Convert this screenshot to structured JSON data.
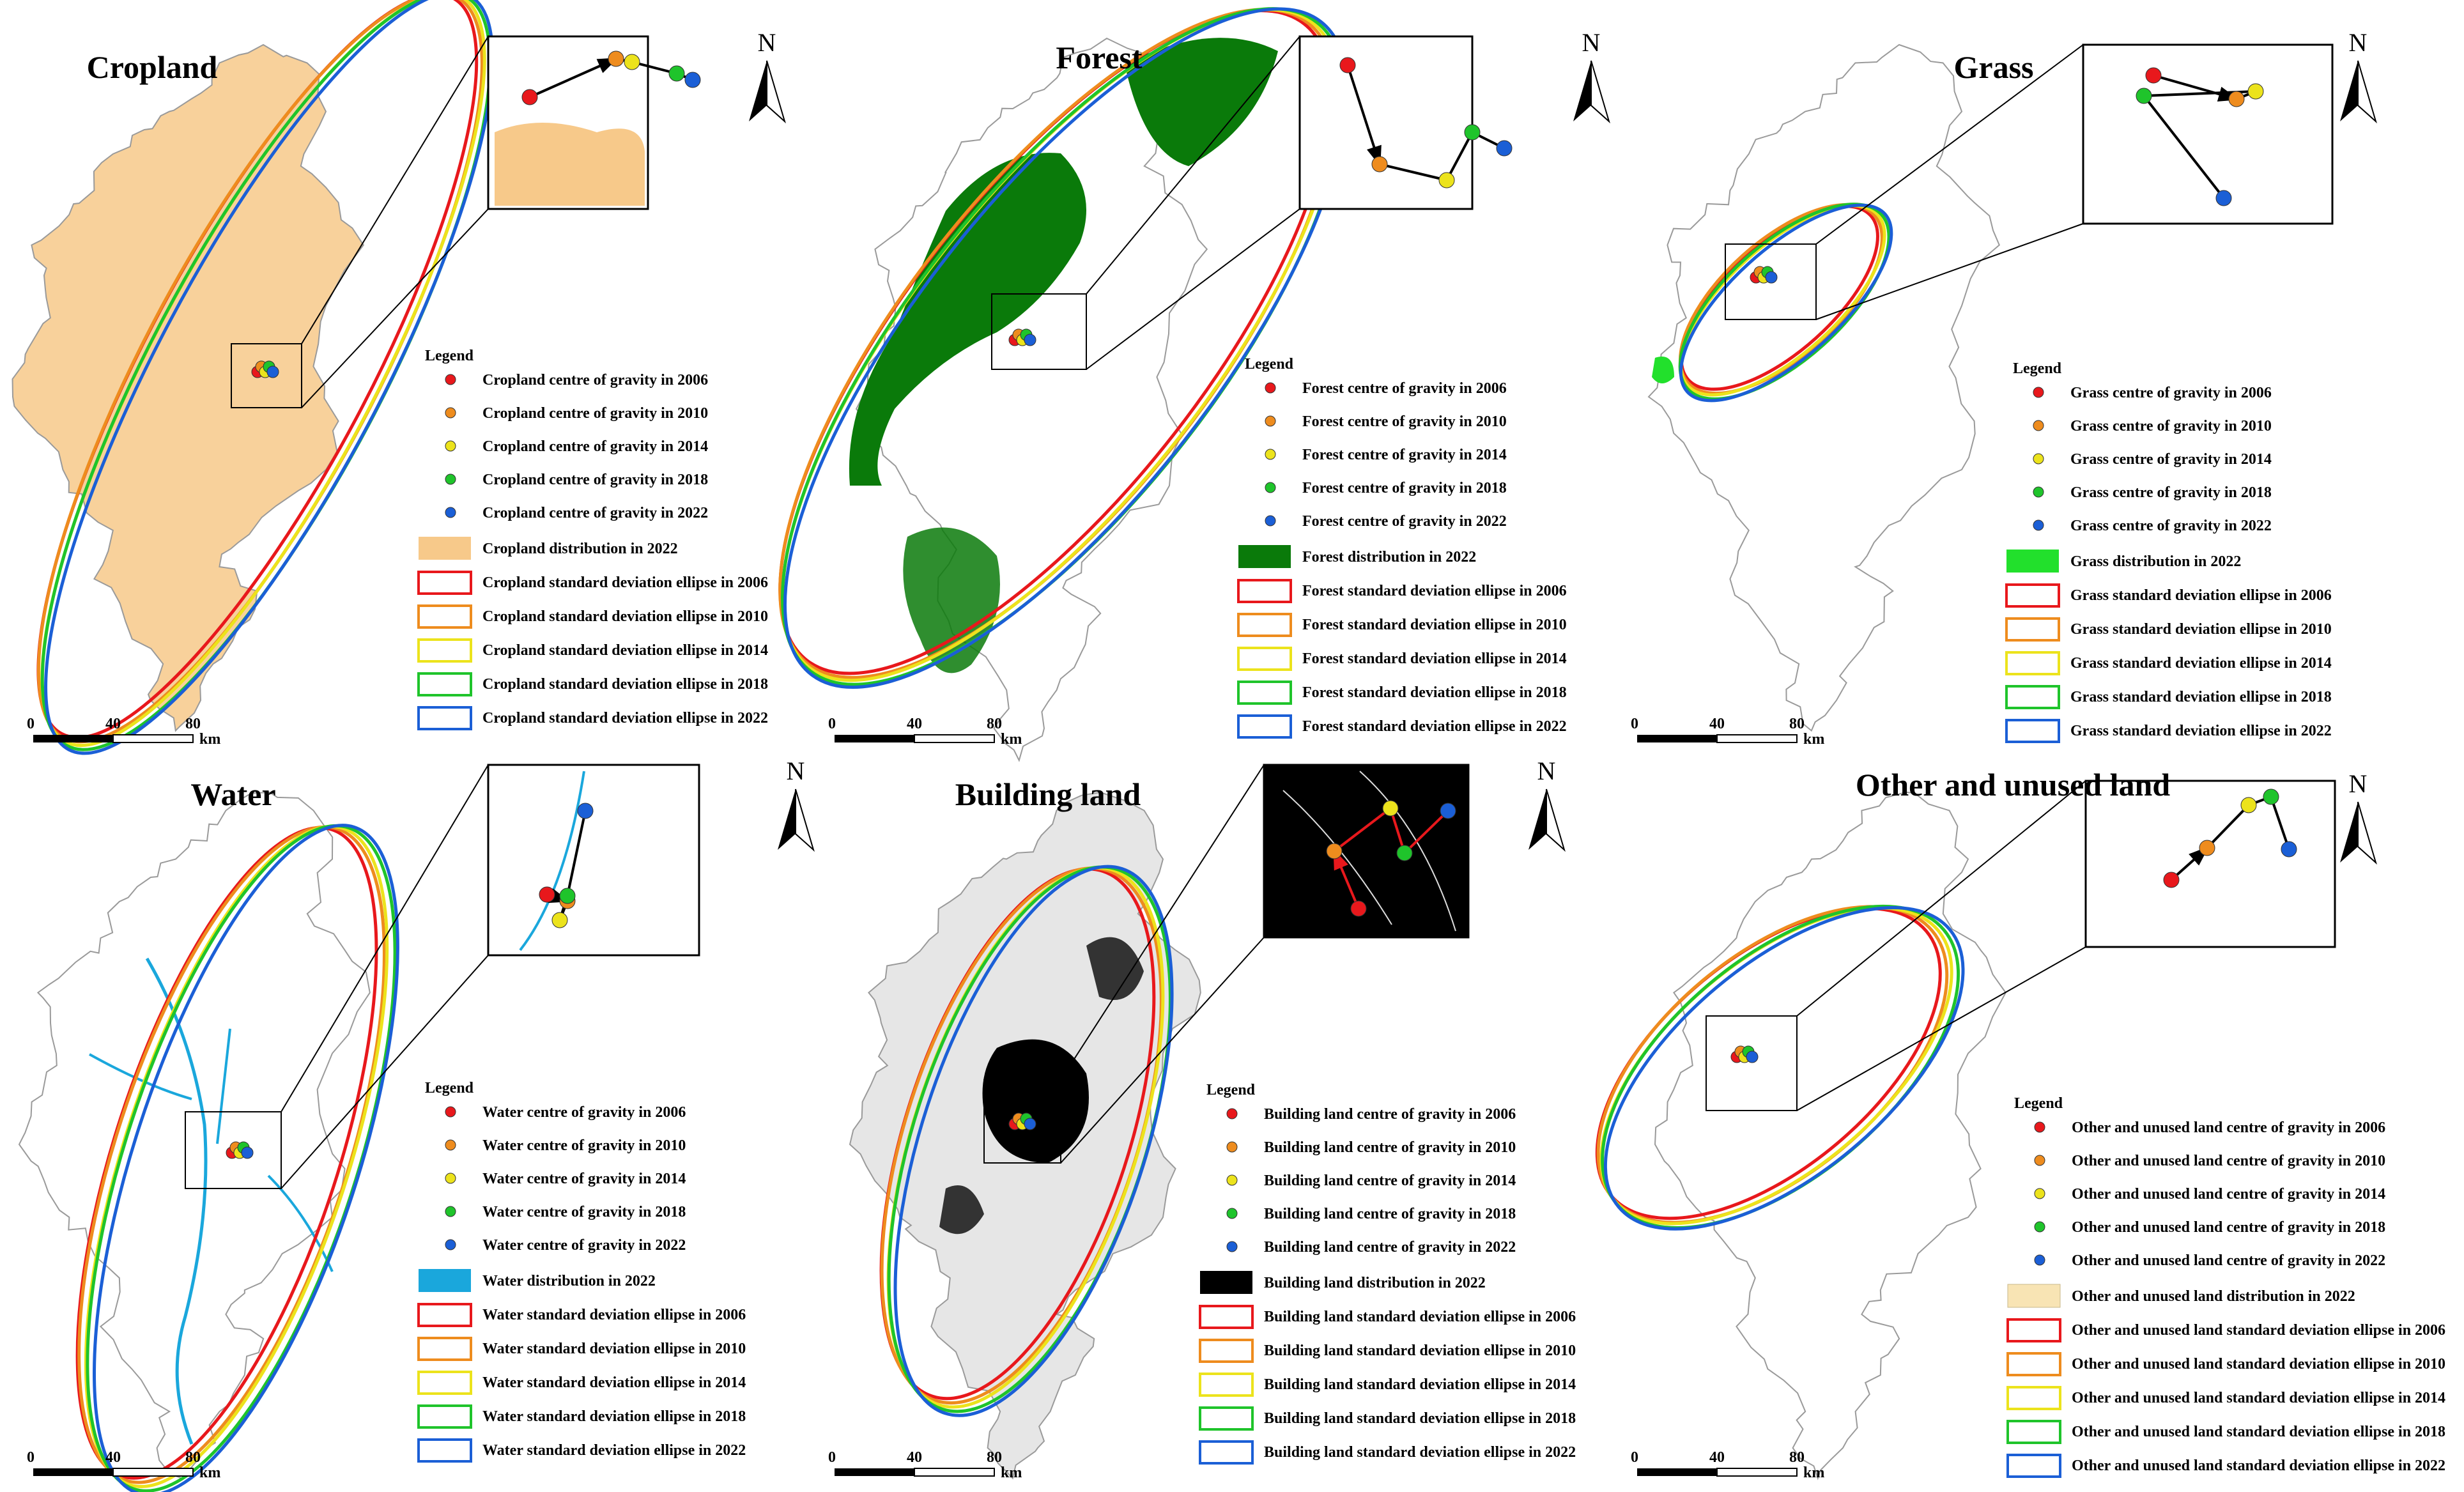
{
  "north_label": "N",
  "legend_title": "Legend",
  "years": [
    "2006",
    "2010",
    "2014",
    "2018",
    "2022"
  ],
  "year_colors": [
    "#e8181c",
    "#ee8c1e",
    "#ece31c",
    "#1fc42b",
    "#1b5fd6"
  ],
  "scale_labels": [
    "0",
    "40",
    "80",
    "km"
  ],
  "panels": [
    {
      "title": "Cropland",
      "fill_color": "#f7c98a",
      "centroid_labels": [
        "Cropland centre of gravity in 2006",
        "Cropland centre of gravity in 2010",
        "Cropland centre of gravity in 2014",
        "Cropland centre of gravity in 2018",
        "Cropland centre of gravity in 2022"
      ],
      "distribution_label": "Cropland distribution in 2022",
      "ellipse_labels": [
        "Cropland standard deviation ellipse in 2006",
        "Cropland standard deviation ellipse in 2010",
        "Cropland standard deviation ellipse in 2014",
        "Cropland standard deviation ellipse in 2018",
        "Cropland standard deviation ellipse in 2022"
      ]
    },
    {
      "title": "Forest",
      "fill_color": "#0a7a0a",
      "centroid_labels": [
        "Forest centre of gravity in 2006",
        "Forest centre of gravity in 2010",
        "Forest centre of gravity in 2014",
        "Forest centre of gravity in 2018",
        "Forest centre of gravity in 2022"
      ],
      "distribution_label": "Forest distribution in 2022",
      "ellipse_labels": [
        "Forest standard deviation ellipse in 2006",
        "Forest standard deviation ellipse in 2010",
        "Forest standard deviation ellipse in 2014",
        "Forest standard deviation ellipse in 2018",
        "Forest standard deviation ellipse in 2022"
      ]
    },
    {
      "title": "Grass",
      "fill_color": "#22e02c",
      "centroid_labels": [
        "Grass centre of gravity in 2006",
        "Grass centre of gravity in 2010",
        "Grass centre of gravity in 2014",
        "Grass centre of gravity in 2018",
        "Grass centre of gravity in 2022"
      ],
      "distribution_label": "Grass distribution in 2022",
      "ellipse_labels": [
        "Grass standard deviation ellipse in 2006",
        "Grass standard deviation ellipse in 2010",
        "Grass standard deviation ellipse in 2014",
        "Grass standard deviation ellipse in 2018",
        "Grass standard deviation ellipse in 2022"
      ]
    },
    {
      "title": "Water",
      "fill_color": "#1aa7dc",
      "centroid_labels": [
        "Water centre of gravity in 2006",
        "Water centre of gravity in 2010",
        "Water centre of gravity in 2014",
        "Water centre of gravity in 2018",
        "Water centre of gravity in 2022"
      ],
      "distribution_label": "Water distribution in 2022",
      "ellipse_labels": [
        "Water standard deviation ellipse in 2006",
        "Water standard deviation ellipse in 2010",
        "Water standard deviation ellipse in 2014",
        "Water standard deviation ellipse in 2018",
        "Water standard deviation ellipse in 2022"
      ]
    },
    {
      "title": "Building land",
      "fill_color": "#000000",
      "centroid_labels": [
        "Building land centre of gravity in 2006",
        "Building land centre of gravity in 2010",
        "Building land centre of gravity in 2014",
        "Building land centre of gravity in 2018",
        "Building land centre of gravity in 2022"
      ],
      "distribution_label": "Building land distribution in 2022",
      "ellipse_labels": [
        "Building land standard deviation ellipse in 2006",
        "Building land standard deviation ellipse in 2010",
        "Building land standard deviation ellipse in 2014",
        "Building land standard deviation ellipse in 2018",
        "Building land standard deviation ellipse in 2022"
      ]
    },
    {
      "title": "Other and unused land",
      "fill_color": "#f8e4b4",
      "centroid_labels": [
        "Other and unused land centre of gravity in 2006",
        "Other and unused land centre of gravity in 2010",
        "Other and unused land centre of gravity in 2014",
        "Other and unused land centre of gravity in 2018",
        "Other and unused land centre of gravity in 2022"
      ],
      "distribution_label": "Other and unused land distribution in 2022",
      "ellipse_labels": [
        "Other and unused land standard deviation ellipse in 2006",
        "Other and unused land standard deviation ellipse in 2010",
        "Other and unused land standard deviation ellipse in 2014",
        "Other and unused land standard deviation ellipse in 2018",
        "Other and unused land standard deviation ellipse in 2022"
      ]
    }
  ]
}
